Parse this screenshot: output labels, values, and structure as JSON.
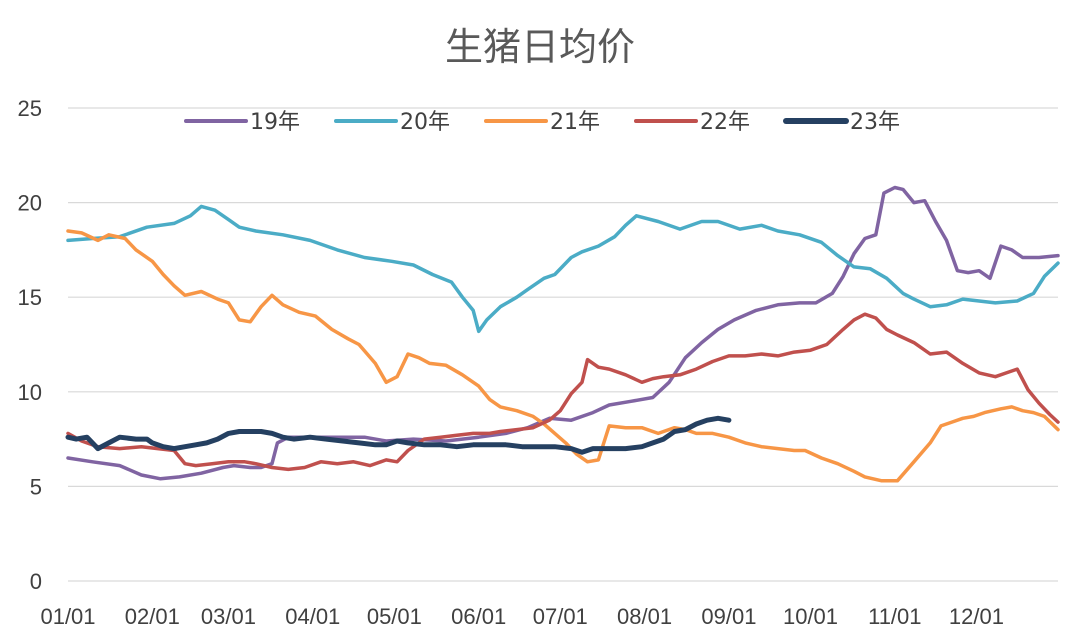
{
  "chart_data": {
    "type": "line",
    "title": "生猪日均价",
    "xlabel": "",
    "ylabel": "",
    "ylim": [
      0,
      25
    ],
    "yticks": [
      "0",
      "5",
      "10",
      "15",
      "20",
      "25"
    ],
    "xlim": [
      1,
      365
    ],
    "xticks": [
      {
        "label": "01/01",
        "day": 1
      },
      {
        "label": "02/01",
        "day": 32
      },
      {
        "label": "03/01",
        "day": 60
      },
      {
        "label": "04/01",
        "day": 91
      },
      {
        "label": "05/01",
        "day": 121
      },
      {
        "label": "06/01",
        "day": 152
      },
      {
        "label": "07/01",
        "day": 182
      },
      {
        "label": "08/01",
        "day": 213
      },
      {
        "label": "09/01",
        "day": 244
      },
      {
        "label": "10/01",
        "day": 274
      },
      {
        "label": "11/01",
        "day": 305
      },
      {
        "label": "12/01",
        "day": 335
      }
    ],
    "grid": true,
    "legend_position": "top",
    "series": [
      {
        "name": "19年",
        "color": "#8064a2",
        "points": [
          [
            1,
            6.5
          ],
          [
            10,
            6.3
          ],
          [
            20,
            6.1
          ],
          [
            28,
            5.6
          ],
          [
            35,
            5.4
          ],
          [
            42,
            5.5
          ],
          [
            50,
            5.7
          ],
          [
            58,
            6.0
          ],
          [
            62,
            6.1
          ],
          [
            68,
            6.0
          ],
          [
            72,
            6.0
          ],
          [
            76,
            6.2
          ],
          [
            78,
            7.3
          ],
          [
            82,
            7.6
          ],
          [
            90,
            7.6
          ],
          [
            100,
            7.6
          ],
          [
            110,
            7.6
          ],
          [
            118,
            7.4
          ],
          [
            128,
            7.5
          ],
          [
            140,
            7.4
          ],
          [
            152,
            7.6
          ],
          [
            162,
            7.8
          ],
          [
            170,
            8.1
          ],
          [
            178,
            8.6
          ],
          [
            186,
            8.5
          ],
          [
            194,
            8.9
          ],
          [
            200,
            9.3
          ],
          [
            208,
            9.5
          ],
          [
            216,
            9.7
          ],
          [
            222,
            10.5
          ],
          [
            228,
            11.8
          ],
          [
            234,
            12.6
          ],
          [
            240,
            13.3
          ],
          [
            246,
            13.8
          ],
          [
            254,
            14.3
          ],
          [
            262,
            14.6
          ],
          [
            270,
            14.7
          ],
          [
            276,
            14.7
          ],
          [
            282,
            15.2
          ],
          [
            286,
            16.1
          ],
          [
            290,
            17.3
          ],
          [
            294,
            18.1
          ],
          [
            298,
            18.3
          ],
          [
            301,
            20.5
          ],
          [
            305,
            20.8
          ],
          [
            308,
            20.7
          ],
          [
            312,
            20.0
          ],
          [
            316,
            20.1
          ],
          [
            320,
            19.0
          ],
          [
            324,
            18.0
          ],
          [
            328,
            16.4
          ],
          [
            332,
            16.3
          ],
          [
            336,
            16.4
          ],
          [
            340,
            16.0
          ],
          [
            344,
            17.7
          ],
          [
            348,
            17.5
          ],
          [
            352,
            17.1
          ],
          [
            358,
            17.1
          ],
          [
            365,
            17.2
          ]
        ]
      },
      {
        "name": "20年",
        "color": "#4bacc6",
        "points": [
          [
            1,
            18.0
          ],
          [
            10,
            18.1
          ],
          [
            20,
            18.2
          ],
          [
            30,
            18.7
          ],
          [
            40,
            18.9
          ],
          [
            46,
            19.3
          ],
          [
            50,
            19.8
          ],
          [
            55,
            19.6
          ],
          [
            60,
            19.1
          ],
          [
            64,
            18.7
          ],
          [
            70,
            18.5
          ],
          [
            80,
            18.3
          ],
          [
            90,
            18.0
          ],
          [
            100,
            17.5
          ],
          [
            110,
            17.1
          ],
          [
            120,
            16.9
          ],
          [
            128,
            16.7
          ],
          [
            135,
            16.2
          ],
          [
            142,
            15.8
          ],
          [
            146,
            15.0
          ],
          [
            150,
            14.3
          ],
          [
            152,
            13.2
          ],
          [
            155,
            13.8
          ],
          [
            160,
            14.5
          ],
          [
            166,
            15.0
          ],
          [
            170,
            15.4
          ],
          [
            176,
            16.0
          ],
          [
            180,
            16.2
          ],
          [
            186,
            17.1
          ],
          [
            190,
            17.4
          ],
          [
            196,
            17.7
          ],
          [
            202,
            18.2
          ],
          [
            206,
            18.8
          ],
          [
            210,
            19.3
          ],
          [
            218,
            19.0
          ],
          [
            226,
            18.6
          ],
          [
            234,
            19.0
          ],
          [
            240,
            19.0
          ],
          [
            248,
            18.6
          ],
          [
            256,
            18.8
          ],
          [
            262,
            18.5
          ],
          [
            270,
            18.3
          ],
          [
            278,
            17.9
          ],
          [
            284,
            17.2
          ],
          [
            290,
            16.6
          ],
          [
            296,
            16.5
          ],
          [
            302,
            16.0
          ],
          [
            308,
            15.2
          ],
          [
            312,
            14.9
          ],
          [
            318,
            14.5
          ],
          [
            324,
            14.6
          ],
          [
            330,
            14.9
          ],
          [
            336,
            14.8
          ],
          [
            342,
            14.7
          ],
          [
            350,
            14.8
          ],
          [
            356,
            15.2
          ],
          [
            360,
            16.1
          ],
          [
            365,
            16.8
          ]
        ]
      },
      {
        "name": "21年",
        "color": "#f79646",
        "points": [
          [
            1,
            18.5
          ],
          [
            6,
            18.4
          ],
          [
            12,
            18.0
          ],
          [
            16,
            18.3
          ],
          [
            22,
            18.1
          ],
          [
            26,
            17.5
          ],
          [
            32,
            16.9
          ],
          [
            36,
            16.2
          ],
          [
            40,
            15.6
          ],
          [
            44,
            15.1
          ],
          [
            50,
            15.3
          ],
          [
            56,
            14.9
          ],
          [
            60,
            14.7
          ],
          [
            64,
            13.8
          ],
          [
            68,
            13.7
          ],
          [
            72,
            14.5
          ],
          [
            76,
            15.1
          ],
          [
            80,
            14.6
          ],
          [
            86,
            14.2
          ],
          [
            92,
            14.0
          ],
          [
            98,
            13.3
          ],
          [
            104,
            12.8
          ],
          [
            108,
            12.5
          ],
          [
            114,
            11.5
          ],
          [
            118,
            10.5
          ],
          [
            122,
            10.8
          ],
          [
            126,
            12.0
          ],
          [
            130,
            11.8
          ],
          [
            134,
            11.5
          ],
          [
            140,
            11.4
          ],
          [
            146,
            10.9
          ],
          [
            152,
            10.3
          ],
          [
            156,
            9.6
          ],
          [
            160,
            9.2
          ],
          [
            166,
            9.0
          ],
          [
            172,
            8.7
          ],
          [
            176,
            8.3
          ],
          [
            180,
            7.8
          ],
          [
            184,
            7.3
          ],
          [
            188,
            6.7
          ],
          [
            192,
            6.3
          ],
          [
            196,
            6.4
          ],
          [
            200,
            8.2
          ],
          [
            206,
            8.1
          ],
          [
            212,
            8.1
          ],
          [
            218,
            7.8
          ],
          [
            224,
            8.1
          ],
          [
            228,
            8.0
          ],
          [
            232,
            7.8
          ],
          [
            238,
            7.8
          ],
          [
            244,
            7.6
          ],
          [
            250,
            7.3
          ],
          [
            256,
            7.1
          ],
          [
            262,
            7.0
          ],
          [
            268,
            6.9
          ],
          [
            272,
            6.9
          ],
          [
            278,
            6.5
          ],
          [
            284,
            6.2
          ],
          [
            290,
            5.8
          ],
          [
            294,
            5.5
          ],
          [
            300,
            5.3
          ],
          [
            306,
            5.3
          ],
          [
            312,
            6.3
          ],
          [
            318,
            7.3
          ],
          [
            322,
            8.2
          ],
          [
            326,
            8.4
          ],
          [
            330,
            8.6
          ],
          [
            334,
            8.7
          ],
          [
            338,
            8.9
          ],
          [
            344,
            9.1
          ],
          [
            348,
            9.2
          ],
          [
            352,
            9.0
          ],
          [
            356,
            8.9
          ],
          [
            360,
            8.7
          ],
          [
            365,
            8.0
          ]
        ]
      },
      {
        "name": "22年",
        "color": "#c0504d",
        "points": [
          [
            1,
            7.8
          ],
          [
            6,
            7.4
          ],
          [
            12,
            7.1
          ],
          [
            20,
            7.0
          ],
          [
            28,
            7.1
          ],
          [
            34,
            7.0
          ],
          [
            40,
            6.9
          ],
          [
            44,
            6.2
          ],
          [
            48,
            6.1
          ],
          [
            54,
            6.2
          ],
          [
            60,
            6.3
          ],
          [
            66,
            6.3
          ],
          [
            70,
            6.2
          ],
          [
            76,
            6.0
          ],
          [
            82,
            5.9
          ],
          [
            88,
            6.0
          ],
          [
            94,
            6.3
          ],
          [
            100,
            6.2
          ],
          [
            106,
            6.3
          ],
          [
            112,
            6.1
          ],
          [
            118,
            6.4
          ],
          [
            122,
            6.3
          ],
          [
            126,
            6.9
          ],
          [
            132,
            7.5
          ],
          [
            138,
            7.6
          ],
          [
            144,
            7.7
          ],
          [
            150,
            7.8
          ],
          [
            156,
            7.8
          ],
          [
            160,
            7.9
          ],
          [
            166,
            8.0
          ],
          [
            172,
            8.1
          ],
          [
            178,
            8.5
          ],
          [
            182,
            9.0
          ],
          [
            186,
            9.9
          ],
          [
            190,
            10.5
          ],
          [
            192,
            11.7
          ],
          [
            196,
            11.3
          ],
          [
            200,
            11.2
          ],
          [
            206,
            10.9
          ],
          [
            212,
            10.5
          ],
          [
            216,
            10.7
          ],
          [
            220,
            10.8
          ],
          [
            226,
            10.9
          ],
          [
            232,
            11.2
          ],
          [
            238,
            11.6
          ],
          [
            244,
            11.9
          ],
          [
            250,
            11.9
          ],
          [
            256,
            12.0
          ],
          [
            262,
            11.9
          ],
          [
            268,
            12.1
          ],
          [
            274,
            12.2
          ],
          [
            280,
            12.5
          ],
          [
            286,
            13.3
          ],
          [
            290,
            13.8
          ],
          [
            294,
            14.1
          ],
          [
            298,
            13.9
          ],
          [
            302,
            13.3
          ],
          [
            306,
            13.0
          ],
          [
            312,
            12.6
          ],
          [
            318,
            12.0
          ],
          [
            324,
            12.1
          ],
          [
            330,
            11.5
          ],
          [
            336,
            11.0
          ],
          [
            342,
            10.8
          ],
          [
            346,
            11.0
          ],
          [
            350,
            11.2
          ],
          [
            354,
            10.1
          ],
          [
            358,
            9.4
          ],
          [
            362,
            8.8
          ],
          [
            365,
            8.4
          ]
        ]
      },
      {
        "name": "23年",
        "color": "#254061",
        "points": [
          [
            1,
            7.6
          ],
          [
            4,
            7.5
          ],
          [
            8,
            7.6
          ],
          [
            12,
            7.0
          ],
          [
            16,
            7.3
          ],
          [
            20,
            7.6
          ],
          [
            26,
            7.5
          ],
          [
            30,
            7.5
          ],
          [
            32,
            7.3
          ],
          [
            36,
            7.1
          ],
          [
            40,
            7.0
          ],
          [
            44,
            7.1
          ],
          [
            48,
            7.2
          ],
          [
            52,
            7.3
          ],
          [
            56,
            7.5
          ],
          [
            60,
            7.8
          ],
          [
            64,
            7.9
          ],
          [
            68,
            7.9
          ],
          [
            72,
            7.9
          ],
          [
            76,
            7.8
          ],
          [
            80,
            7.6
          ],
          [
            84,
            7.5
          ],
          [
            90,
            7.6
          ],
          [
            96,
            7.5
          ],
          [
            102,
            7.4
          ],
          [
            108,
            7.3
          ],
          [
            114,
            7.2
          ],
          [
            118,
            7.2
          ],
          [
            122,
            7.4
          ],
          [
            126,
            7.3
          ],
          [
            132,
            7.2
          ],
          [
            138,
            7.2
          ],
          [
            144,
            7.1
          ],
          [
            150,
            7.2
          ],
          [
            156,
            7.2
          ],
          [
            162,
            7.2
          ],
          [
            168,
            7.1
          ],
          [
            174,
            7.1
          ],
          [
            180,
            7.1
          ],
          [
            186,
            7.0
          ],
          [
            190,
            6.8
          ],
          [
            194,
            7.0
          ],
          [
            200,
            7.0
          ],
          [
            206,
            7.0
          ],
          [
            212,
            7.1
          ],
          [
            216,
            7.3
          ],
          [
            220,
            7.5
          ],
          [
            224,
            7.9
          ],
          [
            228,
            8.0
          ],
          [
            232,
            8.3
          ],
          [
            236,
            8.5
          ],
          [
            240,
            8.6
          ],
          [
            244,
            8.5
          ]
        ]
      }
    ]
  }
}
